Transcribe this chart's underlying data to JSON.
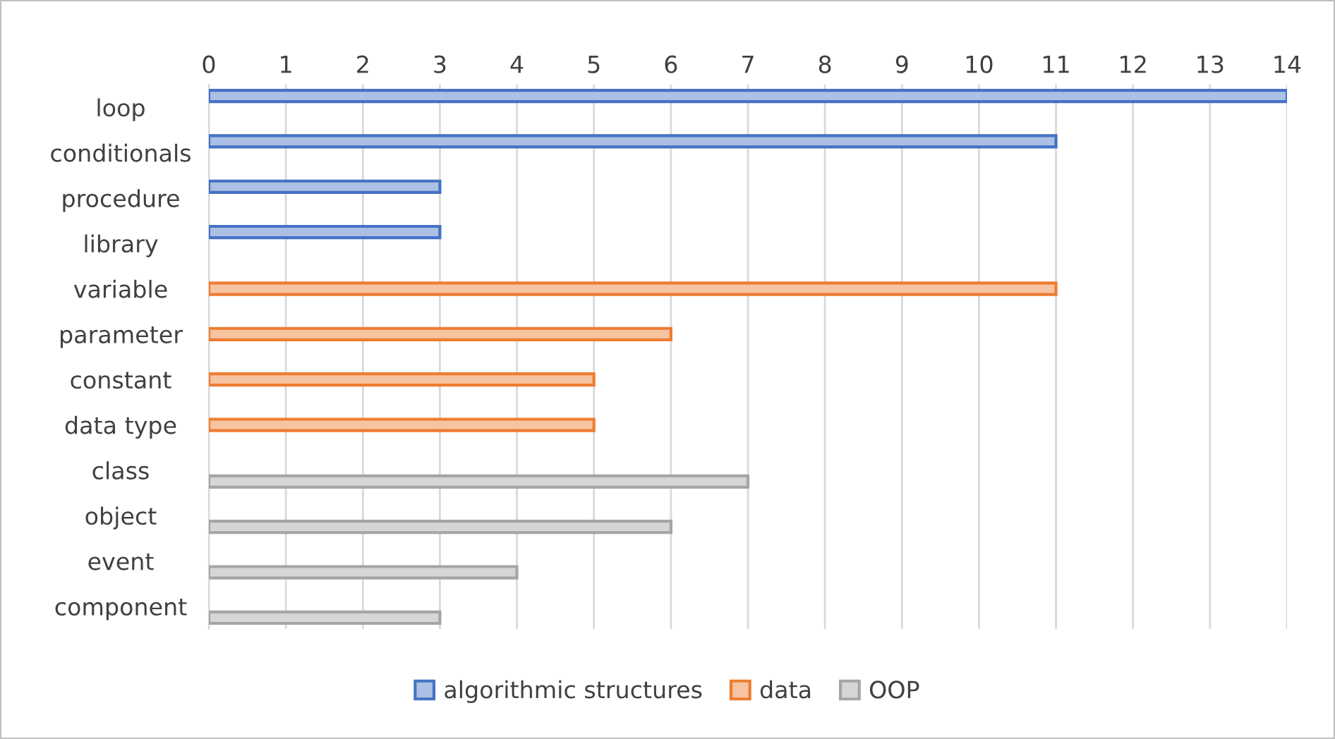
{
  "chart_data": {
    "type": "bar",
    "orientation": "horizontal",
    "categories": [
      "loop",
      "conditionals",
      "procedure",
      "library",
      "variable",
      "parameter",
      "constant",
      "data type",
      "class",
      "object",
      "event",
      "component"
    ],
    "series": [
      {
        "name": "algorithmic structures",
        "color": "#4472c4",
        "values": [
          14,
          11,
          3,
          3,
          null,
          null,
          null,
          null,
          null,
          null,
          null,
          null
        ]
      },
      {
        "name": "data",
        "color": "#ed7d31",
        "values": [
          null,
          null,
          null,
          null,
          11,
          6,
          5,
          5,
          null,
          null,
          null,
          null
        ]
      },
      {
        "name": "OOP",
        "color": "#a5a5a5",
        "values": [
          null,
          null,
          null,
          null,
          null,
          null,
          null,
          null,
          7,
          6,
          4,
          3
        ]
      }
    ],
    "xlim": [
      0,
      14
    ],
    "xticks": [
      0,
      1,
      2,
      3,
      4,
      5,
      6,
      7,
      8,
      9,
      10,
      11,
      12,
      13,
      14
    ],
    "grid": "x",
    "legend": "bottom"
  }
}
